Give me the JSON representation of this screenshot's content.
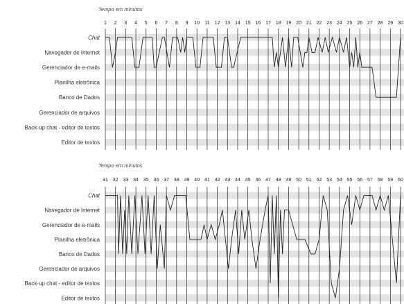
{
  "chart_data": [
    {
      "type": "line",
      "title": "Tempo em minutos",
      "categories": [
        "Chat",
        "Navegador de Internet",
        "Gerenciador de e-mails",
        "Planilha eletrônica",
        "Banco de Dados",
        "Gerenciador de arquivos",
        "Back-up chat - editor de textos",
        "Editor de textos"
      ],
      "x_ticks": [
        "1",
        "2",
        "3",
        "4",
        "5",
        "6",
        "7",
        "8",
        "9",
        "10",
        "11",
        "12",
        "13",
        "14",
        "15",
        "16",
        "17",
        "18",
        "19",
        "20",
        "21",
        "22",
        "23",
        "24",
        "25",
        "26",
        "27",
        "28",
        "29",
        "30"
      ],
      "xlim": [
        1,
        30
      ],
      "grid": true,
      "series": [
        {
          "x": [
            1,
            1.4,
            1.7,
            2.0,
            2.2,
            2.6,
            3.6,
            3.9,
            4.3,
            4.7,
            5.0,
            5.6,
            5.8,
            6.0,
            6.6,
            6.8,
            7.3,
            7.6,
            8.1,
            8.4,
            8.6,
            8.8,
            9.0,
            9.3,
            9.6,
            9.9,
            10.3,
            10.6,
            11.3,
            11.6,
            11.9,
            12.4,
            12.7,
            13.0,
            13.4,
            13.6,
            14.3,
            14.7,
            17.4,
            17.6,
            17.8,
            18.0,
            18.2,
            18.4,
            18.7,
            19.0,
            19.3,
            19.5,
            19.9,
            20.4,
            20.6,
            20.8,
            21.0,
            21.3,
            21.6,
            21.9,
            22.3,
            22.6,
            22.9,
            23.3,
            23.7,
            24.0,
            24.4,
            24.7,
            25.0,
            25.2,
            25.4,
            25.6,
            25.8,
            26.0,
            26.2,
            26.5,
            27.2,
            27.6,
            28.2,
            29.0,
            29.6,
            30.0
          ],
          "y": [
            1,
            1,
            3,
            2,
            1,
            1,
            1,
            3,
            3,
            1,
            1,
            1,
            3,
            3,
            1,
            1,
            3,
            1,
            1,
            2,
            1,
            2,
            1,
            1,
            1,
            3,
            3,
            1,
            1,
            1,
            3,
            3,
            1,
            1,
            3,
            3,
            1,
            1,
            1,
            3,
            2,
            3,
            2,
            1,
            3,
            1,
            3,
            1,
            1,
            3,
            2,
            2,
            1,
            2,
            2,
            1,
            2,
            1,
            2,
            1,
            2,
            1,
            2,
            1,
            3,
            2,
            3,
            1,
            3,
            2,
            3,
            3,
            3,
            5,
            5,
            5,
            5,
            1
          ]
        }
      ]
    },
    {
      "type": "line",
      "title": "Tempo em minutos",
      "categories": [
        "Chat",
        "Navegador de Internet",
        "Gerenciador de e-mails",
        "Planilha eletrônica",
        "Banco de Dados",
        "Gerenciador de arquivos",
        "Back-up chat - editor de textos",
        "Editor de textos"
      ],
      "x_ticks": [
        "31",
        "32",
        "33",
        "34",
        "35",
        "36",
        "37",
        "38",
        "39",
        "40",
        "41",
        "42",
        "43",
        "44",
        "45",
        "46",
        "47",
        "48",
        "49",
        "50",
        "51",
        "52",
        "53",
        "54",
        "55",
        "56",
        "57",
        "58",
        "59",
        "60"
      ],
      "xlim": [
        31,
        60
      ],
      "grid": true,
      "series": [
        {
          "x": [
            31,
            32.2,
            32.3,
            32.5,
            32.7,
            32.9,
            33.1,
            33.3,
            33.6,
            33.9,
            34.2,
            34.6,
            34.9,
            35.2,
            35.5,
            35.8,
            36.1,
            36.4,
            36.8,
            37.0,
            37.4,
            37.8,
            38.4,
            38.9,
            39.3,
            40.4,
            40.7,
            41.0,
            41.4,
            41.8,
            42.2,
            42.5,
            42.8,
            43.1,
            43.4,
            43.8,
            44.1,
            44.4,
            44.7,
            45.1,
            45.4,
            45.8,
            46.2,
            46.7,
            47.0,
            47.2,
            47.4,
            47.6,
            47.8,
            48.0,
            48.2,
            48.4,
            48.6,
            49.0,
            49.4,
            49.8,
            50.2,
            50.6,
            51.2,
            51.6,
            52.0,
            52.4,
            52.8,
            53.2,
            53.6,
            54.0,
            54.4,
            54.8,
            55.2,
            55.6,
            56.0,
            56.4,
            56.8,
            57.2,
            57.6,
            58.0,
            58.4,
            58.8,
            59.2,
            59.6,
            60.0
          ],
          "y": [
            1,
            1,
            5,
            1,
            5,
            2,
            5,
            1,
            5,
            1,
            5,
            1,
            5,
            1,
            5,
            1,
            6,
            3,
            6,
            1,
            2,
            1,
            1,
            1,
            4,
            4,
            3,
            4,
            3,
            4,
            3,
            2,
            4,
            6,
            4,
            2,
            5,
            2,
            4,
            2,
            4,
            6,
            4,
            2,
            1,
            7,
            1,
            5,
            1,
            8,
            2,
            5,
            2,
            2,
            3,
            4,
            4,
            4,
            5,
            5,
            4,
            1,
            2,
            7,
            8,
            6,
            2,
            1,
            3,
            1,
            2,
            1,
            1,
            1,
            2,
            1,
            2,
            1,
            4,
            7,
            1
          ]
        }
      ]
    }
  ]
}
